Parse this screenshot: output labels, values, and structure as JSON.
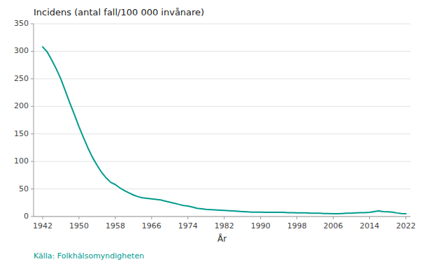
{
  "chart_data": {
    "type": "line",
    "title": "Incidens (antal fall/100 000 invånare)",
    "xlabel": "År",
    "annotation": "Källa: Folkhälsomyndigheten",
    "color": "#009B8D",
    "grid": true,
    "xlim": [
      1940,
      2023
    ],
    "xticks": [
      1942,
      1950,
      1958,
      1966,
      1974,
      1982,
      1990,
      1998,
      2006,
      2014,
      2022
    ],
    "ylim": [
      0,
      350
    ],
    "yticks": [
      0,
      50,
      100,
      150,
      200,
      250,
      300,
      350
    ],
    "x": [
      1942,
      1943,
      1944,
      1945,
      1946,
      1947,
      1948,
      1949,
      1950,
      1951,
      1952,
      1953,
      1954,
      1955,
      1956,
      1957,
      1958,
      1959,
      1960,
      1961,
      1962,
      1963,
      1964,
      1965,
      1966,
      1967,
      1968,
      1969,
      1970,
      1971,
      1972,
      1973,
      1974,
      1975,
      1976,
      1977,
      1978,
      1979,
      1980,
      1981,
      1982,
      1983,
      1984,
      1985,
      1986,
      1987,
      1988,
      1989,
      1990,
      1991,
      1992,
      1993,
      1994,
      1995,
      1996,
      1997,
      1998,
      1999,
      2000,
      2001,
      2002,
      2003,
      2004,
      2005,
      2006,
      2007,
      2008,
      2009,
      2010,
      2011,
      2012,
      2013,
      2014,
      2015,
      2016,
      2017,
      2018,
      2019,
      2020,
      2021,
      2022
    ],
    "values": [
      308,
      299,
      284,
      268,
      250,
      228,
      206,
      185,
      163,
      143,
      124,
      107,
      93,
      80,
      70,
      62,
      58,
      52,
      47,
      43,
      39,
      36,
      34,
      33,
      32,
      31,
      30,
      28,
      26,
      24,
      22,
      20,
      19,
      17,
      15,
      14,
      13,
      12.5,
      12,
      11.5,
      11,
      10.5,
      10,
      9.5,
      9,
      8.5,
      8,
      8,
      8,
      7.5,
      7.5,
      7.5,
      7.5,
      7.5,
      7,
      7,
      6.5,
      6.5,
      6.5,
      6,
      6,
      6,
      5.5,
      5.5,
      5,
      5,
      5.5,
      6,
      6,
      6.5,
      7,
      7,
      7.5,
      9,
      10,
      9,
      8.5,
      8,
      6.5,
      5.5,
      5
    ]
  }
}
